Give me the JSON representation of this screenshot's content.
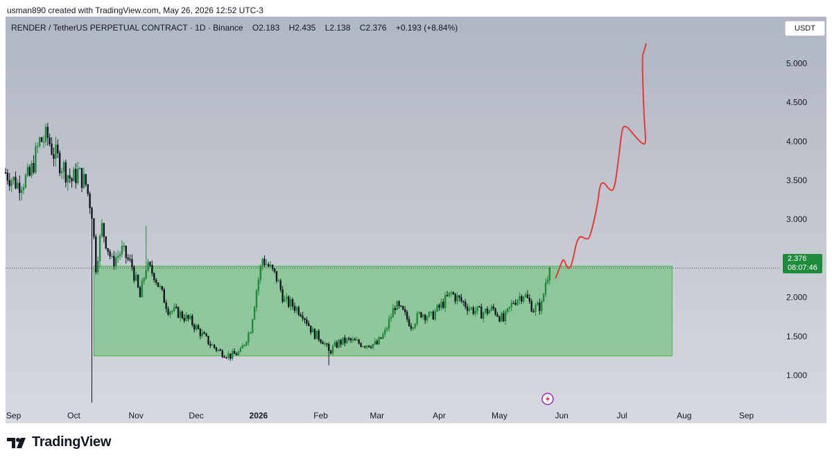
{
  "header": {
    "credit": "usman890 created with TradingView.com, May 26, 2026 12:52 UTC-3"
  },
  "symbol": {
    "title": "RENDER / TetherUS PERPETUAL CONTRACT · 1D · Binance",
    "open": "O2.183",
    "high": "H2.435",
    "low": "L2.138",
    "close": "C2.376",
    "change": "+0.193 (+8.84%)"
  },
  "currency_button": {
    "label": "USDT"
  },
  "price_badge": {
    "price": "2.376",
    "countdown": "08:07:46"
  },
  "brand": {
    "name": "TradingView"
  },
  "icons": {
    "flash": "lightning-icon",
    "logo": "tradingview-logo-icon"
  },
  "colors": {
    "up": "#1e8a3b",
    "down": "#131722",
    "zone_fill": "#7fc489",
    "zone_border": "#4caf50",
    "projection": "#e53935",
    "price_badge": "#1e8a3b",
    "lightning": "#9c27b0"
  },
  "chart_data": {
    "type": "candlestick",
    "timeframe": "1D",
    "y_axis": {
      "ticks": [
        1.0,
        1.5,
        2.0,
        2.5,
        3.0,
        3.5,
        4.0,
        4.5,
        5.0
      ],
      "labels": [
        "1.000",
        "1.500",
        "2.000",
        "2.500",
        "3.000",
        "3.500",
        "4.000",
        "4.500",
        "5.000"
      ],
      "range": [
        0.6,
        5.6
      ]
    },
    "x_axis": {
      "range": [
        "2025-08-28",
        "2026-09-16"
      ],
      "ticks": [
        {
          "date": "2025-09-01",
          "label": "Sep"
        },
        {
          "date": "2025-10-01",
          "label": "Oct"
        },
        {
          "date": "2025-11-01",
          "label": "Nov"
        },
        {
          "date": "2025-12-01",
          "label": "Dec"
        },
        {
          "date": "2026-01-01",
          "label": "2026"
        },
        {
          "date": "2026-02-01",
          "label": "Feb"
        },
        {
          "date": "2026-03-01",
          "label": "Mar"
        },
        {
          "date": "2026-04-01",
          "label": "Apr"
        },
        {
          "date": "2026-05-01",
          "label": "May"
        },
        {
          "date": "2026-06-01",
          "label": "Jun"
        },
        {
          "date": "2026-07-01",
          "label": "Jul"
        },
        {
          "date": "2026-08-01",
          "label": "Aug"
        },
        {
          "date": "2026-09-01",
          "label": "Sep"
        }
      ]
    },
    "price_path": {
      "dates": [
        "2025-08-28",
        "2025-09-03",
        "2025-09-09",
        "2025-09-14",
        "2025-09-18",
        "2025-09-21",
        "2025-09-25",
        "2025-09-30",
        "2025-10-03",
        "2025-10-07",
        "2025-10-10",
        "2025-10-12",
        "2025-10-15",
        "2025-10-20",
        "2025-10-25",
        "2025-10-30",
        "2025-11-03",
        "2025-11-06",
        "2025-11-10",
        "2025-11-13",
        "2025-11-17",
        "2025-11-22",
        "2025-11-28",
        "2025-12-03",
        "2025-12-08",
        "2025-12-13",
        "2025-12-18",
        "2025-12-23",
        "2025-12-28",
        "2025-12-31",
        "2026-01-03",
        "2026-01-06",
        "2026-01-10",
        "2026-01-14",
        "2026-01-18",
        "2026-01-23",
        "2026-01-28",
        "2026-02-02",
        "2026-02-05",
        "2026-02-10",
        "2026-02-15",
        "2026-02-22",
        "2026-03-01",
        "2026-03-05",
        "2026-03-10",
        "2026-03-14",
        "2026-03-18",
        "2026-03-23",
        "2026-03-28",
        "2026-04-02",
        "2026-04-07",
        "2026-04-12",
        "2026-04-17",
        "2026-04-22",
        "2026-04-28",
        "2026-05-03",
        "2026-05-08",
        "2026-05-13",
        "2026-05-18",
        "2026-05-22",
        "2026-05-24",
        "2026-05-26"
      ],
      "values": [
        3.6,
        3.45,
        3.55,
        4.0,
        4.05,
        3.85,
        3.7,
        3.5,
        3.6,
        3.45,
        3.1,
        2.4,
        2.9,
        2.45,
        2.6,
        2.4,
        2.0,
        2.4,
        2.3,
        2.1,
        1.85,
        1.8,
        1.7,
        1.55,
        1.4,
        1.3,
        1.25,
        1.3,
        1.6,
        2.1,
        2.5,
        2.4,
        2.25,
        1.95,
        1.9,
        1.8,
        1.55,
        1.45,
        1.3,
        1.42,
        1.45,
        1.4,
        1.4,
        1.55,
        1.9,
        1.8,
        1.65,
        1.8,
        1.75,
        1.9,
        2.05,
        1.95,
        1.85,
        1.8,
        1.85,
        1.7,
        1.95,
        2.05,
        1.85,
        1.9,
        2.2,
        2.38
      ]
    },
    "support_zone": {
      "x_start": "2025-10-11",
      "x_end": "2026-07-26",
      "y_low": 1.25,
      "y_high": 2.4
    },
    "projection_path": {
      "dates": [
        "2026-05-29",
        "2026-06-01",
        "2026-06-02",
        "2026-06-04",
        "2026-06-06",
        "2026-06-09",
        "2026-06-13",
        "2026-06-15",
        "2026-06-19",
        "2026-06-20",
        "2026-06-22",
        "2026-06-24",
        "2026-06-27",
        "2026-06-29",
        "2026-07-01",
        "2026-07-02",
        "2026-07-04",
        "2026-07-08",
        "2026-07-12",
        "2026-07-13",
        "2026-07-12",
        "2026-07-11",
        "2026-07-12",
        "2026-07-13"
      ],
      "values": [
        2.25,
        2.45,
        2.5,
        2.36,
        2.4,
        2.8,
        2.75,
        2.75,
        3.2,
        3.45,
        3.48,
        3.4,
        3.35,
        3.7,
        4.15,
        4.2,
        4.18,
        4.05,
        3.95,
        4.0,
        4.3,
        5.1,
        5.15,
        5.25
      ]
    },
    "last_price": 2.376
  }
}
